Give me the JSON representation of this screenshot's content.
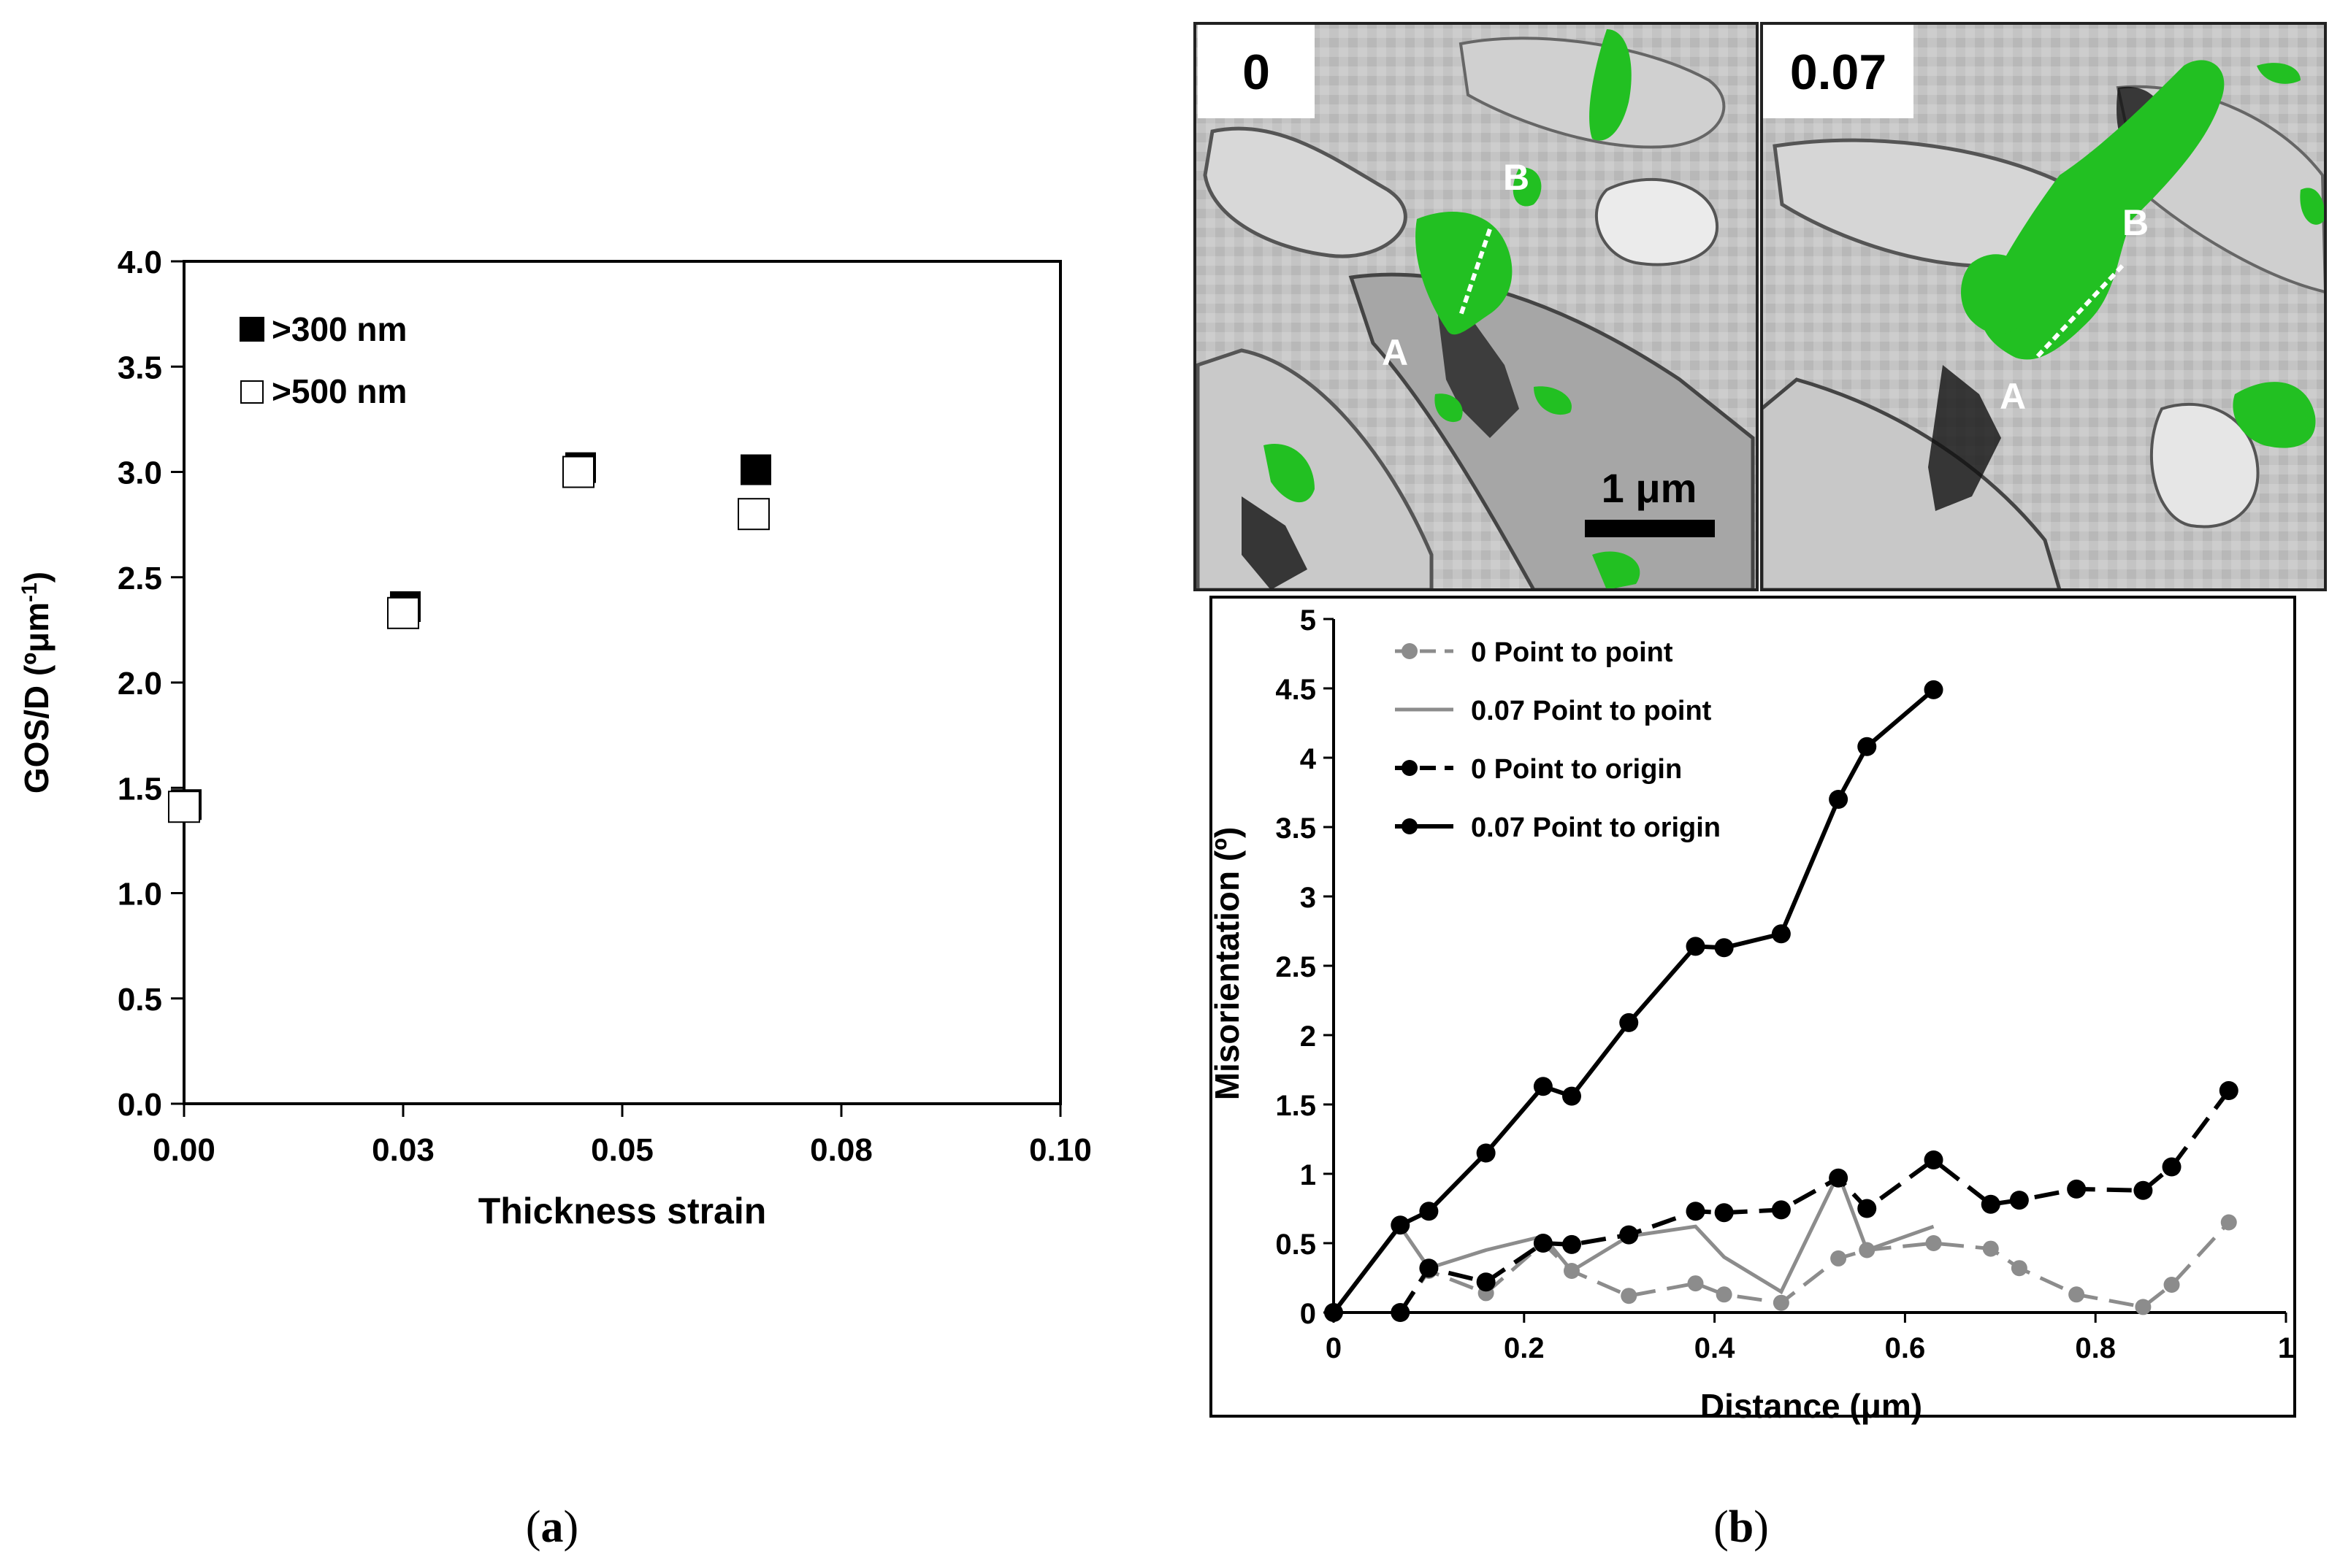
{
  "figure": {
    "captions": [
      "(a)",
      "(b)"
    ],
    "caption_parts": [
      {
        "open": "(",
        "letter": "a",
        "close": ")"
      },
      {
        "open": "(",
        "letter": "b",
        "close": ")"
      }
    ]
  },
  "micrographs": {
    "panel_labels": [
      "0",
      "0.07"
    ],
    "point_labels_left": {
      "a": "A",
      "b": "B"
    },
    "point_labels_right": {
      "a": "A",
      "b": "B"
    },
    "scale_bar": "1 μm",
    "colors": {
      "highlight": "#22c022",
      "background": "#bdbdbd"
    }
  },
  "chart_data": [
    {
      "id": "a",
      "type": "scatter",
      "title": "",
      "xlabel": "Thickness strain",
      "ylabel": "GOS/D (ºμm⁻¹)",
      "ylabel_parts": {
        "main": "GOS/D (ºμm",
        "sup": "-1",
        "close": ")"
      },
      "xlim": [
        0,
        0.1
      ],
      "ylim": [
        0,
        4
      ],
      "xticks": [
        0,
        0.025,
        0.05,
        0.075,
        0.1
      ],
      "xtick_labels": [
        "0.00",
        "0.03",
        "0.05",
        "0.08",
        "0.10"
      ],
      "yticks": [
        0,
        0.5,
        1,
        1.5,
        2,
        2.5,
        3,
        3.5,
        4
      ],
      "ytick_labels": [
        "0.0",
        "0.5",
        "1.0",
        "1.5",
        "2.0",
        "2.5",
        "3.0",
        "3.5",
        "4.0"
      ],
      "legend_position": "top-left",
      "series": [
        {
          "name": ">300 nm",
          "marker": "filled-square",
          "color": "#000000",
          "x": [
            0,
            0.025,
            0.045,
            0.065
          ],
          "y": [
            1.41,
            2.35,
            3.01,
            3.0
          ]
        },
        {
          "name": ">500 nm",
          "marker": "open-square",
          "color": "#000000",
          "x": [
            0,
            0.025,
            0.045,
            0.065
          ],
          "y": [
            1.41,
            2.33,
            3.0,
            2.8
          ]
        }
      ]
    },
    {
      "id": "b",
      "type": "line",
      "title": "",
      "xlabel": "Distance (μm)",
      "ylabel": "Misorientation (º)",
      "xlim": [
        0,
        1
      ],
      "ylim": [
        0,
        5
      ],
      "xticks": [
        0,
        0.2,
        0.4,
        0.6,
        0.8,
        1
      ],
      "xtick_labels": [
        "0",
        "0.2",
        "0.4",
        "0.6",
        "0.8",
        "1"
      ],
      "yticks": [
        0,
        0.5,
        1,
        1.5,
        2,
        2.5,
        3,
        3.5,
        4,
        4.5,
        5
      ],
      "ytick_labels": [
        "0",
        "0.5",
        "1",
        "1.5",
        "2",
        "2.5",
        "3",
        "3.5",
        "4",
        "4.5",
        "5"
      ],
      "legend_position": "top-left",
      "series": [
        {
          "name": "0 Point to point",
          "color": "#8c8c8c",
          "dash": true,
          "markers": true,
          "x": [
            0.07,
            0.1,
            0.16,
            0.22,
            0.25,
            0.31,
            0.38,
            0.41,
            0.47,
            0.53,
            0.56,
            0.63,
            0.69,
            0.72,
            0.78,
            0.85,
            0.88,
            0.94
          ],
          "y": [
            0.0,
            0.3,
            0.14,
            0.5,
            0.3,
            0.12,
            0.21,
            0.13,
            0.07,
            0.39,
            0.45,
            0.5,
            0.46,
            0.32,
            0.13,
            0.04,
            0.2,
            0.65
          ]
        },
        {
          "name": "0.07 Point to point",
          "color": "#8c8c8c",
          "dash": false,
          "markers": false,
          "x": [
            0,
            0.07,
            0.1,
            0.16,
            0.22,
            0.25,
            0.31,
            0.38,
            0.41,
            0.47,
            0.53,
            0.56,
            0.63
          ],
          "y": [
            0,
            0.62,
            0.32,
            0.45,
            0.55,
            0.3,
            0.55,
            0.62,
            0.4,
            0.15,
            1.0,
            0.45,
            0.62
          ]
        },
        {
          "name": "0 Point to origin",
          "color": "#000000",
          "dash": true,
          "markers": true,
          "x": [
            0.07,
            0.1,
            0.16,
            0.22,
            0.25,
            0.31,
            0.38,
            0.41,
            0.47,
            0.53,
            0.56,
            0.63,
            0.69,
            0.72,
            0.78,
            0.85,
            0.88,
            0.94
          ],
          "y": [
            0.0,
            0.32,
            0.22,
            0.5,
            0.49,
            0.56,
            0.73,
            0.72,
            0.74,
            0.97,
            0.75,
            1.1,
            0.78,
            0.81,
            0.89,
            0.88,
            1.05,
            1.6
          ]
        },
        {
          "name": "0.07 Point to origin",
          "color": "#000000",
          "dash": false,
          "markers": true,
          "x": [
            0,
            0.07,
            0.1,
            0.16,
            0.22,
            0.25,
            0.31,
            0.38,
            0.41,
            0.47,
            0.53,
            0.56,
            0.63
          ],
          "y": [
            0,
            0.63,
            0.73,
            1.15,
            1.63,
            1.56,
            2.09,
            2.64,
            2.63,
            2.73,
            3.7,
            4.08,
            4.49
          ]
        }
      ]
    }
  ]
}
